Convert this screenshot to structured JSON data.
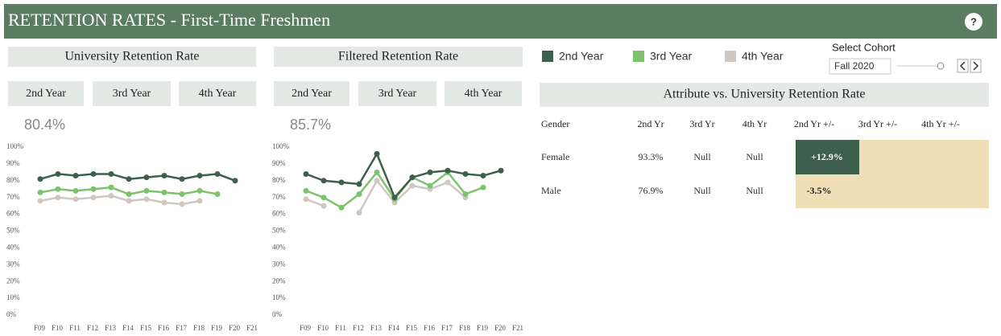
{
  "header": {
    "title": "RETENTION RATES - First-Time Freshmen",
    "help": "?"
  },
  "tabs": [
    "2nd Year",
    "3rd Year",
    "4th Year"
  ],
  "cohort": {
    "label": "Select Cohort",
    "value": "Fall 2020"
  },
  "chart_data": [
    {
      "type": "line",
      "title": "University Retention Rate",
      "headline": "80.4%",
      "categories": [
        "F09",
        "F10",
        "F11",
        "F12",
        "F13",
        "F14",
        "F15",
        "F16",
        "F17",
        "F18",
        "F19",
        "F20",
        "F21"
      ],
      "series": [
        {
          "name": "2nd Year",
          "color": "#3e5f4c",
          "values": [
            81,
            84,
            83,
            84,
            84,
            81,
            82,
            83,
            81,
            83,
            84,
            80,
            null
          ]
        },
        {
          "name": "3rd Year",
          "color": "#7cc36b",
          "values": [
            73,
            75,
            74,
            75,
            76,
            72,
            74,
            73,
            72,
            74,
            72,
            null,
            null
          ]
        },
        {
          "name": "4th Year",
          "color": "#cfc7c1",
          "values": [
            68,
            70,
            69,
            70,
            71,
            68,
            69,
            67,
            66,
            68,
            null,
            null,
            null
          ]
        }
      ],
      "ylim": [
        0,
        100
      ],
      "yticks": [
        {
          "value": 0,
          "label": "0%"
        },
        {
          "value": 10,
          "label": "10%"
        },
        {
          "value": 20,
          "label": "20%"
        },
        {
          "value": 30,
          "label": "30%"
        },
        {
          "value": 40,
          "label": "40%"
        },
        {
          "value": 50,
          "label": "50%"
        },
        {
          "value": 60,
          "label": "60%"
        },
        {
          "value": 70,
          "label": "70%"
        },
        {
          "value": 80,
          "label": "80%"
        },
        {
          "value": 90,
          "label": "90%"
        },
        {
          "value": 100,
          "label": "100%"
        }
      ]
    },
    {
      "type": "line",
      "title": "Filtered Retention Rate",
      "headline": "85.7%",
      "categories": [
        "F09",
        "F10",
        "F11",
        "F12",
        "F13",
        "F14",
        "F15",
        "F16",
        "F17",
        "F18",
        "F19",
        "F20",
        "F21"
      ],
      "series": [
        {
          "name": "2nd Year",
          "color": "#3e5f4c",
          "values": [
            84,
            80,
            79,
            78,
            96,
            70,
            82,
            85,
            86,
            84,
            83,
            86,
            null
          ]
        },
        {
          "name": "3rd Year",
          "color": "#7cc36b",
          "values": [
            74,
            70,
            64,
            72,
            85,
            69,
            82,
            77,
            85,
            72,
            76,
            null,
            null
          ]
        },
        {
          "name": "4th Year",
          "color": "#cfc7c1",
          "values": [
            69,
            65,
            null,
            61,
            80,
            67,
            77,
            75,
            79,
            70,
            null,
            null,
            null
          ]
        }
      ],
      "ylim": [
        0,
        100
      ],
      "yticks": [
        {
          "value": 0,
          "label": "0%"
        },
        {
          "value": 10,
          "label": "10%"
        },
        {
          "value": 20,
          "label": "20%"
        },
        {
          "value": 30,
          "label": "30%"
        },
        {
          "value": 40,
          "label": "40%"
        },
        {
          "value": 50,
          "label": "50%"
        },
        {
          "value": 60,
          "label": "60%"
        },
        {
          "value": 70,
          "label": "70%"
        },
        {
          "value": 80,
          "label": "80%"
        },
        {
          "value": 90,
          "label": "90%"
        },
        {
          "value": 100,
          "label": "100%"
        }
      ]
    }
  ],
  "table": {
    "title": "Attribute vs. University Retention Rate",
    "columns": [
      "Gender",
      "2nd Yr",
      "3rd Yr",
      "4th Yr",
      "2nd Yr +/-",
      "3rd Yr +/-",
      "4th Yr +/-"
    ],
    "rows": [
      [
        "Female",
        "93.3%",
        "Null",
        "Null",
        "+12.9%"
      ],
      [
        "Male",
        "76.9%",
        "Null",
        "Null",
        "-3.5%"
      ]
    ]
  }
}
